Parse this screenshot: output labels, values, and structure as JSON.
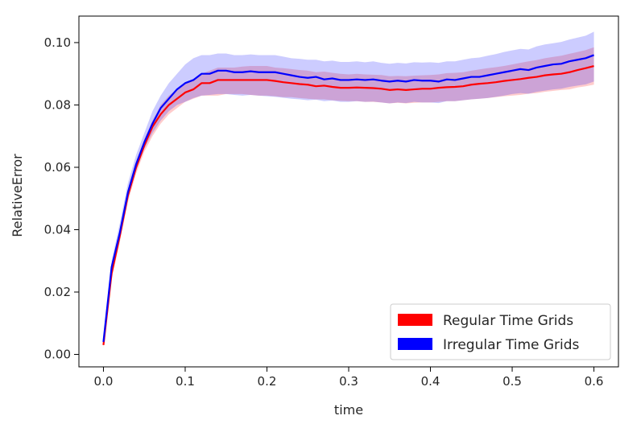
{
  "chart_data": {
    "type": "line",
    "title": "",
    "xlabel": "time",
    "ylabel": "RelativeError",
    "xlim": [
      -0.03,
      0.63
    ],
    "ylim": [
      -0.004,
      0.1085
    ],
    "xticks": [
      0.0,
      0.1,
      0.2,
      0.3,
      0.4,
      0.5,
      0.6
    ],
    "xtick_labels": [
      "0.0",
      "0.1",
      "0.2",
      "0.3",
      "0.4",
      "0.5",
      "0.6"
    ],
    "yticks": [
      0.0,
      0.02,
      0.04,
      0.06,
      0.08,
      0.1
    ],
    "ytick_labels": [
      "0.00",
      "0.02",
      "0.04",
      "0.06",
      "0.08",
      "0.10"
    ],
    "grid": false,
    "legend": {
      "placement": "lower-right"
    },
    "x": [
      0.0,
      0.01,
      0.02,
      0.03,
      0.04,
      0.05,
      0.06,
      0.07,
      0.08,
      0.09,
      0.1,
      0.11,
      0.12,
      0.13,
      0.14,
      0.15,
      0.16,
      0.17,
      0.18,
      0.19,
      0.2,
      0.21,
      0.22,
      0.23,
      0.24,
      0.25,
      0.26,
      0.27,
      0.28,
      0.29,
      0.3,
      0.31,
      0.32,
      0.33,
      0.34,
      0.35,
      0.36,
      0.37,
      0.38,
      0.39,
      0.4,
      0.41,
      0.42,
      0.43,
      0.44,
      0.45,
      0.46,
      0.47,
      0.48,
      0.49,
      0.5,
      0.51,
      0.52,
      0.53,
      0.54,
      0.55,
      0.56,
      0.57,
      0.58,
      0.59,
      0.6
    ],
    "series": [
      {
        "name": "Regular Time Grids",
        "color": "#ff0000",
        "band_color": "#ff0000",
        "values": [
          0.003,
          0.026,
          0.038,
          0.051,
          0.06,
          0.067,
          0.073,
          0.077,
          0.08,
          0.082,
          0.084,
          0.085,
          0.087,
          0.087,
          0.088,
          0.088,
          0.088,
          0.088,
          0.088,
          0.088,
          0.088,
          0.0877,
          0.0873,
          0.087,
          0.0867,
          0.0865,
          0.086,
          0.0862,
          0.0858,
          0.0855,
          0.0855,
          0.0856,
          0.0855,
          0.0854,
          0.0852,
          0.0848,
          0.085,
          0.0848,
          0.085,
          0.0852,
          0.0852,
          0.0855,
          0.0857,
          0.0858,
          0.086,
          0.0865,
          0.0868,
          0.087,
          0.0873,
          0.0877,
          0.088,
          0.0883,
          0.0887,
          0.089,
          0.0895,
          0.0898,
          0.09,
          0.0905,
          0.0912,
          0.0918,
          0.0925
        ],
        "lower": [
          0.002,
          0.024,
          0.036,
          0.049,
          0.058,
          0.065,
          0.07,
          0.074,
          0.077,
          0.079,
          0.081,
          0.082,
          0.083,
          0.083,
          0.083,
          0.0835,
          0.0835,
          0.0835,
          0.0832,
          0.083,
          0.083,
          0.0828,
          0.0825,
          0.0825,
          0.0822,
          0.082,
          0.0818,
          0.0818,
          0.0815,
          0.0813,
          0.0812,
          0.0812,
          0.081,
          0.081,
          0.0808,
          0.0805,
          0.0807,
          0.0805,
          0.0807,
          0.0808,
          0.0808,
          0.081,
          0.0812,
          0.0812,
          0.0815,
          0.0818,
          0.082,
          0.0822,
          0.0825,
          0.0828,
          0.083,
          0.0832,
          0.0836,
          0.0838,
          0.0842,
          0.0845,
          0.0848,
          0.085,
          0.0856,
          0.086,
          0.0865
        ],
        "upper": [
          0.004,
          0.028,
          0.04,
          0.053,
          0.062,
          0.069,
          0.075,
          0.08,
          0.083,
          0.085,
          0.087,
          0.088,
          0.09,
          0.091,
          0.092,
          0.092,
          0.092,
          0.0923,
          0.0925,
          0.0925,
          0.0925,
          0.092,
          0.0918,
          0.0915,
          0.0912,
          0.091,
          0.0905,
          0.0907,
          0.0903,
          0.09,
          0.0898,
          0.09,
          0.0898,
          0.0897,
          0.0896,
          0.0892,
          0.0893,
          0.0892,
          0.0894,
          0.0895,
          0.0896,
          0.0898,
          0.0902,
          0.0903,
          0.0905,
          0.091,
          0.0914,
          0.0918,
          0.0921,
          0.0925,
          0.093,
          0.0935,
          0.094,
          0.0944,
          0.095,
          0.0954,
          0.0958,
          0.0964,
          0.097,
          0.0976,
          0.0985
        ]
      },
      {
        "name": "Irregular Time Grids",
        "color": "#0000ff",
        "band_color": "#0000ff",
        "values": [
          0.004,
          0.028,
          0.039,
          0.052,
          0.061,
          0.068,
          0.074,
          0.079,
          0.082,
          0.085,
          0.087,
          0.088,
          0.09,
          0.09,
          0.091,
          0.091,
          0.0905,
          0.0905,
          0.0908,
          0.0905,
          0.0905,
          0.0905,
          0.09,
          0.0895,
          0.089,
          0.0887,
          0.089,
          0.0882,
          0.0885,
          0.088,
          0.088,
          0.0882,
          0.088,
          0.0882,
          0.0878,
          0.0875,
          0.0878,
          0.0875,
          0.088,
          0.0878,
          0.0878,
          0.0875,
          0.0882,
          0.088,
          0.0885,
          0.089,
          0.089,
          0.0895,
          0.09,
          0.0905,
          0.091,
          0.0915,
          0.0912,
          0.092,
          0.0925,
          0.093,
          0.0932,
          0.094,
          0.0945,
          0.095,
          0.096
        ],
        "lower": [
          0.003,
          0.026,
          0.037,
          0.05,
          0.059,
          0.066,
          0.071,
          0.075,
          0.078,
          0.08,
          0.081,
          0.0822,
          0.083,
          0.0832,
          0.0835,
          0.0835,
          0.0832,
          0.083,
          0.0832,
          0.083,
          0.0828,
          0.0826,
          0.0823,
          0.082,
          0.0818,
          0.0815,
          0.0817,
          0.0812,
          0.0814,
          0.081,
          0.081,
          0.0812,
          0.081,
          0.0811,
          0.0808,
          0.0805,
          0.0808,
          0.0806,
          0.081,
          0.0808,
          0.0808,
          0.0806,
          0.0812,
          0.0812,
          0.0815,
          0.0818,
          0.082,
          0.0822,
          0.0826,
          0.083,
          0.0835,
          0.0838,
          0.0836,
          0.0842,
          0.0846,
          0.085,
          0.0852,
          0.0858,
          0.0862,
          0.0866,
          0.0875
        ],
        "upper": [
          0.005,
          0.03,
          0.042,
          0.055,
          0.064,
          0.071,
          0.078,
          0.083,
          0.087,
          0.09,
          0.093,
          0.095,
          0.096,
          0.096,
          0.0965,
          0.0965,
          0.096,
          0.096,
          0.0962,
          0.096,
          0.096,
          0.096,
          0.0955,
          0.095,
          0.0948,
          0.0945,
          0.0945,
          0.094,
          0.0942,
          0.0938,
          0.0938,
          0.094,
          0.0937,
          0.094,
          0.0935,
          0.0932,
          0.0935,
          0.0933,
          0.0937,
          0.0936,
          0.0937,
          0.0935,
          0.094,
          0.094,
          0.0945,
          0.095,
          0.0952,
          0.0958,
          0.0963,
          0.097,
          0.0975,
          0.098,
          0.0978,
          0.0988,
          0.0994,
          0.0998,
          0.1002,
          0.101,
          0.1016,
          0.1022,
          0.1035
        ]
      }
    ]
  }
}
